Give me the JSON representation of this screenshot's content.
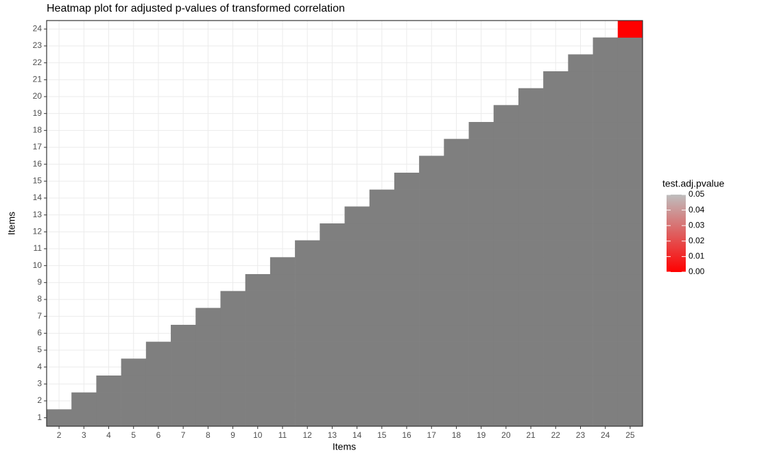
{
  "chart_data": {
    "type": "heatmap",
    "title": "Heatmap plot for adjusted p-values of transformed correlation",
    "x_label": "Items",
    "y_label": "Items",
    "x_categories": [
      "2",
      "3",
      "4",
      "5",
      "6",
      "7",
      "8",
      "9",
      "10",
      "11",
      "12",
      "13",
      "14",
      "15",
      "16",
      "17",
      "18",
      "19",
      "20",
      "21",
      "22",
      "23",
      "24",
      "25"
    ],
    "y_categories": [
      "1",
      "2",
      "3",
      "4",
      "5",
      "6",
      "7",
      "8",
      "9",
      "10",
      "11",
      "12",
      "13",
      "14",
      "15",
      "16",
      "17",
      "18",
      "19",
      "20",
      "21",
      "22",
      "23",
      "24"
    ],
    "values": [
      [
        null,
        null,
        null,
        null,
        null,
        null,
        null,
        null,
        null,
        null,
        null,
        null,
        null,
        null,
        null,
        null,
        null,
        null,
        null,
        null,
        null,
        null,
        null,
        null
      ],
      [
        null,
        null,
        null,
        null,
        null,
        null,
        null,
        null,
        null,
        null,
        null,
        null,
        null,
        null,
        null,
        null,
        null,
        null,
        null,
        null,
        null,
        null,
        null
      ],
      [
        null,
        null,
        null,
        null,
        null,
        null,
        null,
        null,
        null,
        null,
        null,
        null,
        null,
        null,
        null,
        null,
        null,
        null,
        null,
        null,
        null,
        null
      ],
      [
        null,
        null,
        null,
        null,
        null,
        null,
        null,
        null,
        null,
        null,
        null,
        null,
        null,
        null,
        null,
        null,
        null,
        null,
        null,
        null,
        null
      ],
      [
        null,
        null,
        null,
        null,
        null,
        null,
        null,
        null,
        null,
        null,
        null,
        null,
        null,
        null,
        null,
        null,
        null,
        null,
        null,
        null
      ],
      [
        null,
        null,
        null,
        null,
        null,
        null,
        null,
        null,
        null,
        null,
        null,
        null,
        null,
        null,
        null,
        null,
        null,
        null,
        null
      ],
      [
        null,
        null,
        null,
        null,
        null,
        null,
        null,
        null,
        null,
        null,
        null,
        null,
        null,
        null,
        null,
        null,
        null,
        null
      ],
      [
        null,
        null,
        null,
        null,
        null,
        null,
        null,
        null,
        null,
        null,
        null,
        null,
        null,
        null,
        null,
        null,
        null
      ],
      [
        null,
        null,
        null,
        null,
        null,
        null,
        null,
        null,
        null,
        null,
        null,
        null,
        null,
        null,
        null,
        null
      ],
      [
        null,
        null,
        null,
        null,
        null,
        null,
        null,
        null,
        null,
        null,
        null,
        null,
        null,
        null,
        null
      ],
      [
        null,
        null,
        null,
        null,
        null,
        null,
        null,
        null,
        null,
        null,
        null,
        null,
        null,
        null
      ],
      [
        null,
        null,
        null,
        null,
        null,
        null,
        null,
        null,
        null,
        null,
        null,
        null,
        null
      ],
      [
        null,
        null,
        null,
        null,
        null,
        null,
        null,
        null,
        null,
        null,
        null,
        null
      ],
      [
        null,
        null,
        null,
        null,
        null,
        null,
        null,
        null,
        null,
        null,
        null
      ],
      [
        null,
        null,
        null,
        null,
        null,
        null,
        null,
        null,
        null,
        null
      ],
      [
        null,
        null,
        null,
        null,
        null,
        null,
        null,
        null,
        null
      ],
      [
        null,
        null,
        null,
        null,
        null,
        null,
        null,
        null
      ],
      [
        null,
        null,
        null,
        null,
        null,
        null,
        null
      ],
      [
        null,
        null,
        null,
        null,
        null,
        null
      ],
      [
        null,
        null,
        null,
        null,
        null
      ],
      [
        null,
        null,
        null,
        null
      ],
      [
        null,
        null,
        null
      ],
      [
        null,
        null
      ],
      [
        0
      ]
    ],
    "legend_title": "test.adj.pvalue",
    "color_low": "#ff0000",
    "color_high": "#bebebe",
    "na_color": "#7f7f7f",
    "color_lim": [
      0,
      0.05
    ],
    "color_ticks": [
      {
        "value": 0,
        "label": "0.00"
      },
      {
        "value": 0.01,
        "label": "0.01"
      },
      {
        "value": 0.02,
        "label": "0.02"
      },
      {
        "value": 0.03,
        "label": "0.03"
      },
      {
        "value": 0.04,
        "label": "0.04"
      },
      {
        "value": 0.05,
        "label": "0.05"
      }
    ],
    "grid": true
  }
}
